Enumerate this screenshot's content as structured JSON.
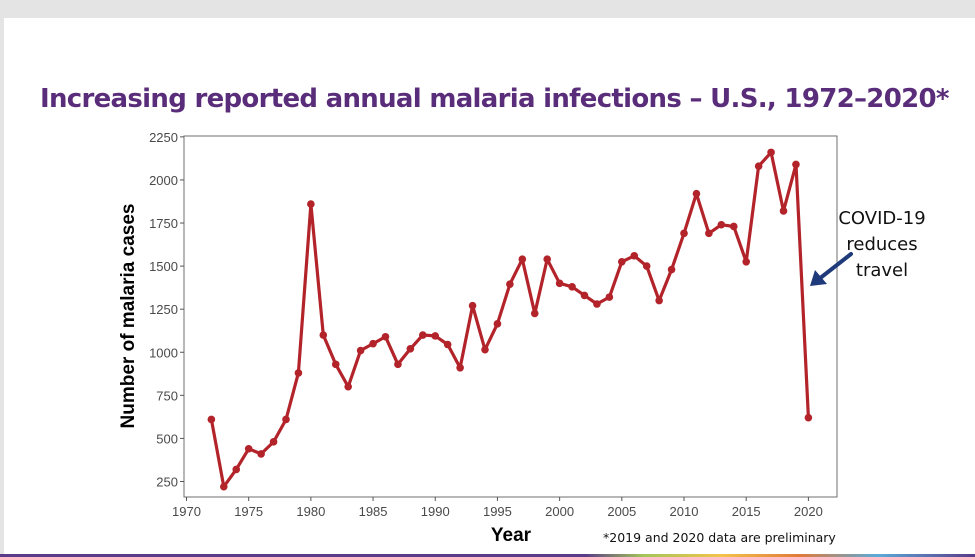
{
  "chart_data": {
    "type": "line",
    "title": "Increasing reported annual malaria infections – U.S., 1972–2020*",
    "xlabel": "Year",
    "ylabel": "Number of malaria cases",
    "xlim": [
      1969.8,
      2022.3
    ],
    "ylim": [
      160,
      2255
    ],
    "x_ticks": [
      1970,
      1975,
      1980,
      1985,
      1990,
      1995,
      2000,
      2005,
      2010,
      2015,
      2020
    ],
    "y_ticks": [
      250,
      500,
      750,
      1000,
      1250,
      1500,
      1750,
      2000,
      2250
    ],
    "grid": false,
    "legend": "none",
    "series": [
      {
        "name": "Malaria cases",
        "color": "#b3232a",
        "x": [
          1972,
          1973,
          1974,
          1975,
          1976,
          1977,
          1978,
          1979,
          1980,
          1981,
          1982,
          1983,
          1984,
          1985,
          1986,
          1987,
          1988,
          1989,
          1990,
          1991,
          1992,
          1993,
          1994,
          1995,
          1996,
          1997,
          1998,
          1999,
          2000,
          2001,
          2002,
          2003,
          2004,
          2005,
          2006,
          2007,
          2008,
          2009,
          2010,
          2011,
          2012,
          2013,
          2014,
          2015,
          2016,
          2017,
          2018,
          2019,
          2020
        ],
        "y": [
          610,
          220,
          320,
          440,
          410,
          480,
          610,
          880,
          1860,
          1100,
          930,
          800,
          1010,
          1050,
          1090,
          930,
          1020,
          1100,
          1095,
          1045,
          910,
          1270,
          1015,
          1165,
          1395,
          1540,
          1225,
          1540,
          1400,
          1380,
          1330,
          1280,
          1320,
          1525,
          1560,
          1500,
          1300,
          1480,
          1690,
          1920,
          1690,
          1740,
          1730,
          1525,
          2080,
          2160,
          1820,
          2090,
          620
        ]
      }
    ],
    "annotation": [
      "COVID-19",
      "reduces",
      "travel"
    ],
    "footnote": "*2019 and 2020 data are preliminary"
  }
}
